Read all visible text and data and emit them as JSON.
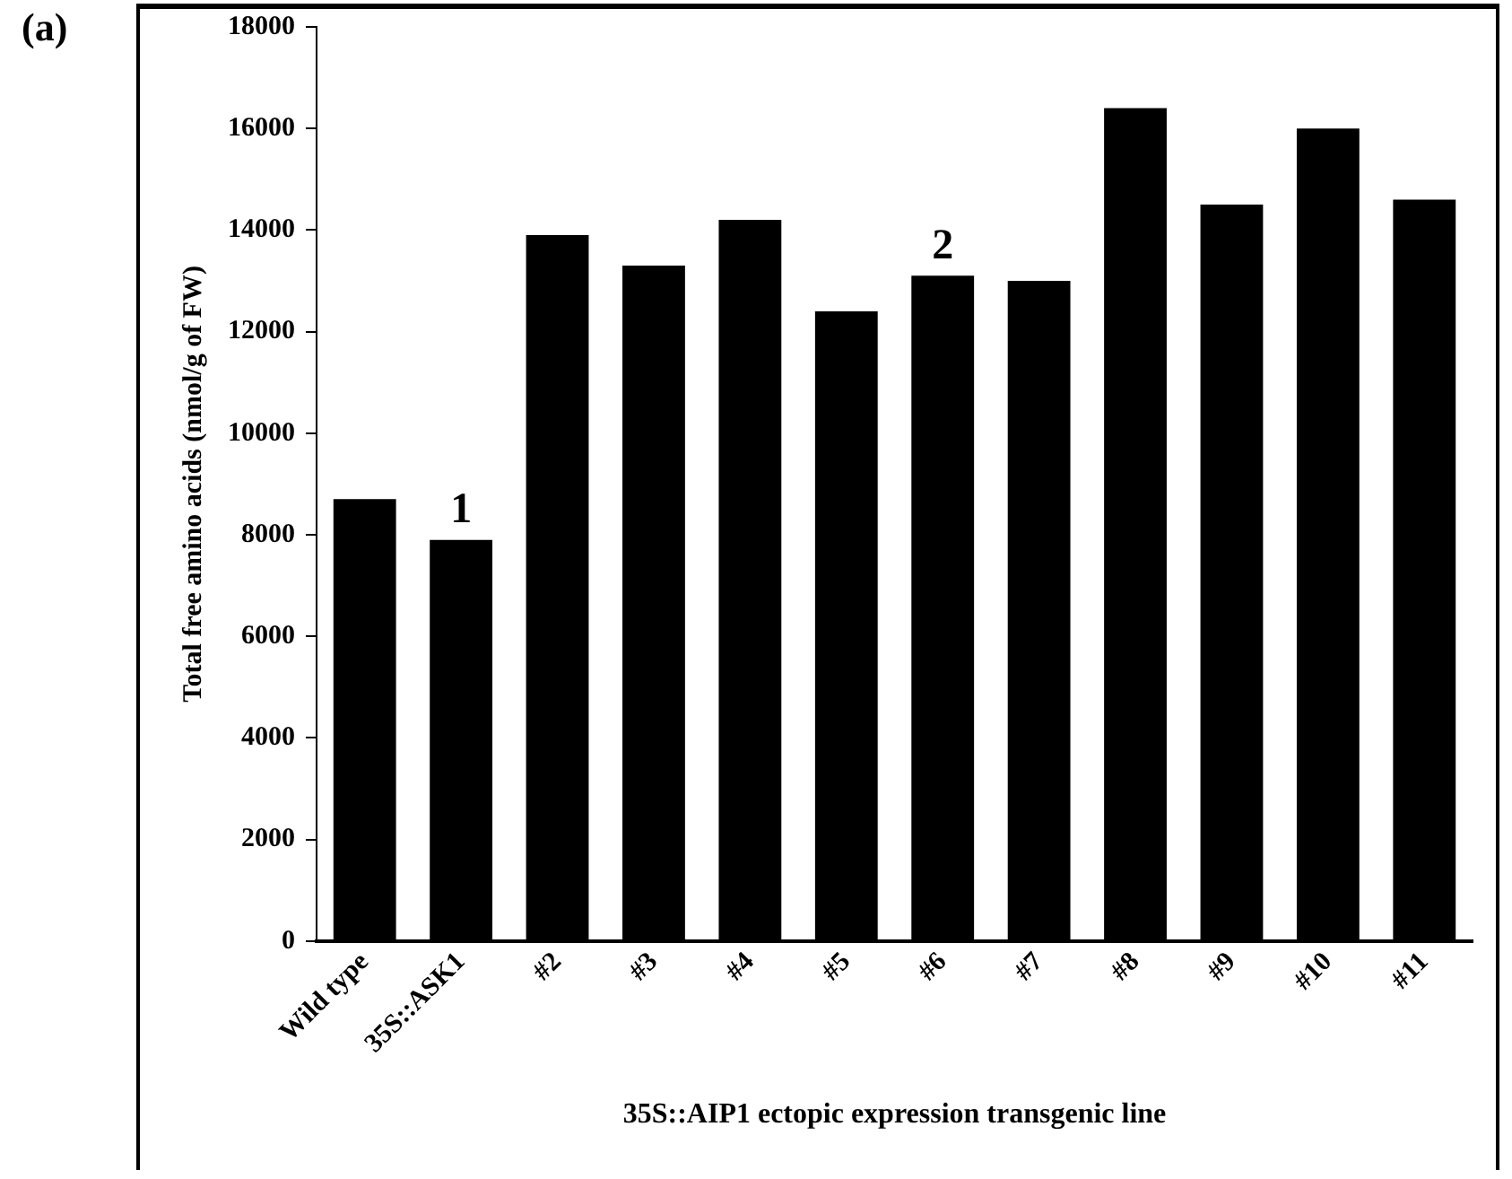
{
  "chart_data": {
    "type": "bar",
    "ylabel": "Total free amino acids (nmol/g of FW)",
    "xlabel": "35S::AIP1 ectopic expression transgenic line",
    "categories": [
      "Wild type",
      "35S::ASK1",
      "#2",
      "#3",
      "#4",
      "#5",
      "#6",
      "#7",
      "#8",
      "#9",
      "#10",
      "#11"
    ],
    "values": [
      8700,
      7900,
      13900,
      13300,
      14200,
      12400,
      13100,
      13000,
      16400,
      14500,
      16000,
      14600
    ],
    "color": "#000000",
    "ylim": [
      0,
      18000
    ],
    "yticks": [
      0,
      2000,
      4000,
      6000,
      8000,
      10000,
      12000,
      14000,
      16000,
      18000
    ],
    "grid": false,
    "legend": false,
    "annotations": [
      "(a)",
      {
        "text": "1",
        "x": "35S::ASK1",
        "y": 7900
      },
      {
        "text": "2",
        "x": "#6",
        "y": 13100
      }
    ]
  }
}
